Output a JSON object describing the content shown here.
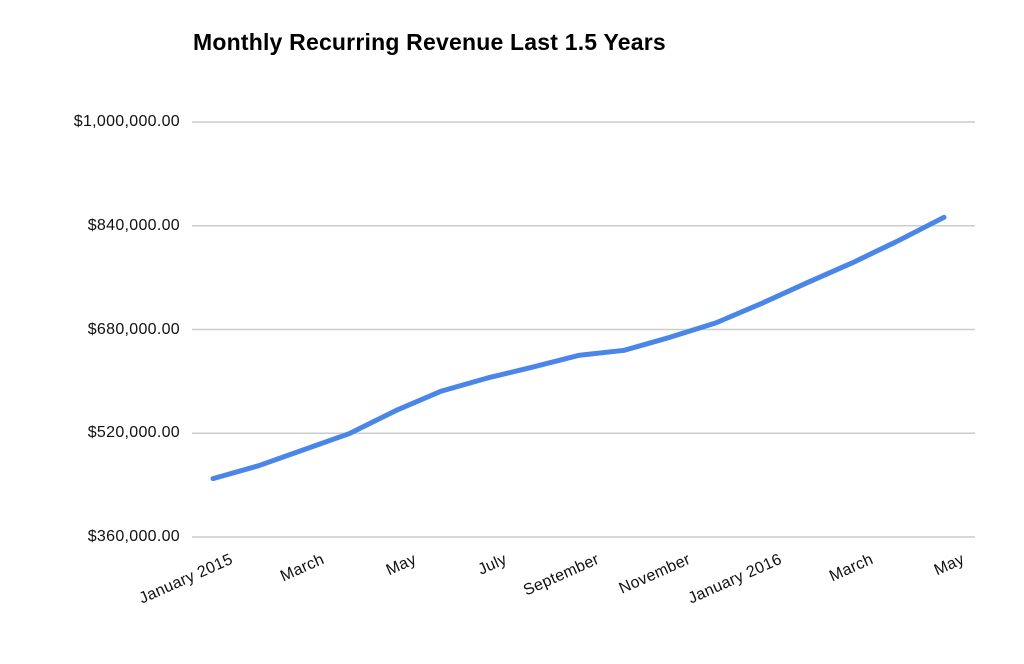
{
  "window": {
    "background": "#ffffff"
  },
  "chart_data": {
    "type": "line",
    "title": "Monthly Recurring Revenue Last 1.5 Years",
    "xlabel": "",
    "ylabel": "",
    "legend": "none",
    "grid": "horizontal-only",
    "ylim": [
      360000,
      1000000
    ],
    "series": [
      {
        "name": "Monthly Recurring Revenue",
        "color": "#4a86e8",
        "x": [
          "January 2015",
          "February 2015",
          "March 2015",
          "April 2015",
          "May 2015",
          "June 2015",
          "July 2015",
          "August 2015",
          "September 2015",
          "October 2015",
          "November 2015",
          "December 2015",
          "January 2016",
          "February 2016",
          "March 2016",
          "April 2016",
          "May 2016"
        ],
        "values": [
          450000,
          470000,
          495000,
          520000,
          555000,
          585000,
          605000,
          622000,
          640000,
          648000,
          668000,
          690000,
          720000,
          752000,
          783000,
          817000,
          853000
        ]
      }
    ],
    "y_ticks": [
      {
        "value": 1000000,
        "label": "$1,000,000.00"
      },
      {
        "value": 840000,
        "label": "$840,000.00"
      },
      {
        "value": 680000,
        "label": "$680,000.00"
      },
      {
        "value": 520000,
        "label": "$520,000.00"
      },
      {
        "value": 360000,
        "label": "$360,000.00"
      }
    ],
    "x_ticks": [
      {
        "index": 0,
        "label": "January 2015"
      },
      {
        "index": 2,
        "label": "March"
      },
      {
        "index": 4,
        "label": "May"
      },
      {
        "index": 6,
        "label": "July"
      },
      {
        "index": 8,
        "label": "September"
      },
      {
        "index": 10,
        "label": "November"
      },
      {
        "index": 12,
        "label": "January 2016"
      },
      {
        "index": 14,
        "label": "March"
      },
      {
        "index": 16,
        "label": "May"
      }
    ],
    "x_label_angle_deg": -24,
    "gridline_color": "#cccccc",
    "axis_label_color": "#111111",
    "title_color": "#000000"
  }
}
